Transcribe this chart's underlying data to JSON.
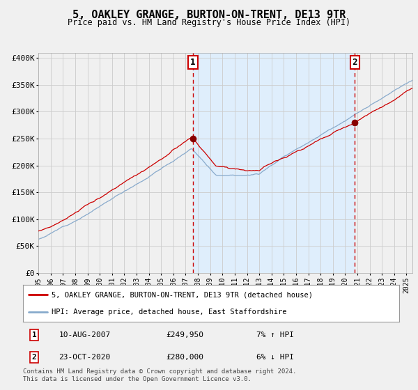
{
  "title": "5, OAKLEY GRANGE, BURTON-ON-TRENT, DE13 9TR",
  "subtitle": "Price paid vs. HM Land Registry's House Price Index (HPI)",
  "ylim": [
    0,
    410000
  ],
  "xlim_start": 1995.0,
  "xlim_end": 2025.5,
  "background_color": "#f0f0f0",
  "plot_bg_color": "#f0f0f0",
  "grid_color": "#cccccc",
  "red_line_color": "#cc0000",
  "blue_line_color": "#88aacc",
  "marker_color": "#880000",
  "vline_color": "#cc0000",
  "shade_color": "#ddeeff",
  "sale1_date": 2007.6,
  "sale1_price": 249950,
  "sale1_label": "1",
  "sale1_text": "10-AUG-2007",
  "sale1_amount": "£249,950",
  "sale1_hpi": "7% ↑ HPI",
  "sale2_date": 2020.8,
  "sale2_price": 280000,
  "sale2_label": "2",
  "sale2_text": "23-OCT-2020",
  "sale2_amount": "£280,000",
  "sale2_hpi": "6% ↓ HPI",
  "legend_red": "5, OAKLEY GRANGE, BURTON-ON-TRENT, DE13 9TR (detached house)",
  "legend_blue": "HPI: Average price, detached house, East Staffordshire",
  "footer": "Contains HM Land Registry data © Crown copyright and database right 2024.\nThis data is licensed under the Open Government Licence v3.0.",
  "yticks": [
    0,
    50000,
    100000,
    150000,
    200000,
    250000,
    300000,
    350000,
    400000
  ],
  "ytick_labels": [
    "£0",
    "£50K",
    "£100K",
    "£150K",
    "£200K",
    "£250K",
    "£300K",
    "£350K",
    "£400K"
  ],
  "xticks": [
    1995,
    1996,
    1997,
    1998,
    1999,
    2000,
    2001,
    2002,
    2003,
    2004,
    2005,
    2006,
    2007,
    2008,
    2009,
    2010,
    2011,
    2012,
    2013,
    2014,
    2015,
    2016,
    2017,
    2018,
    2019,
    2020,
    2021,
    2022,
    2023,
    2024,
    2025
  ],
  "noise_scale_hpi": 600,
  "noise_scale_red": 700,
  "random_seed": 12
}
